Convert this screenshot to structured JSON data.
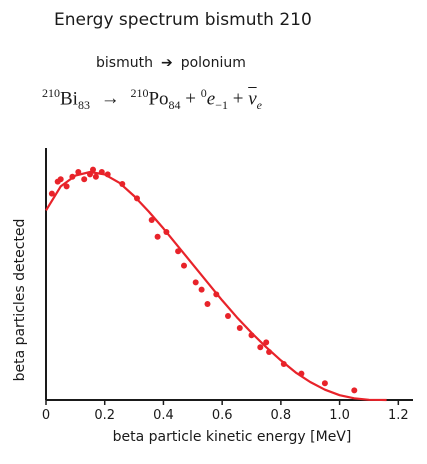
{
  "title": "Energy spectrum bismuth 210",
  "reaction": {
    "from": "bismuth",
    "to": "polonium"
  },
  "equation": {
    "bi_mass": "210",
    "bi_symbol": "Bi",
    "bi_atomic": "83",
    "po_mass": "210",
    "po_symbol": "Po",
    "po_atomic": "84",
    "plus1": "+",
    "e_mass": "0",
    "e_symbol": "e",
    "e_charge": "−1",
    "plus2": "+",
    "nu_symbol": "ν",
    "nu_sub": "e"
  },
  "chart_data": {
    "type": "scatter",
    "xlabel": "beta particle kinetic energy  [MeV]",
    "ylabel": "beta particles detected",
    "xlim": [
      0,
      1.25
    ],
    "ylim": [
      0,
      1.05
    ],
    "xticks": [
      "0",
      "0.2",
      "0.4",
      "0.6",
      "0.8",
      "1.0",
      "1.2"
    ],
    "xtick_values": [
      0,
      0.2,
      0.4,
      0.6,
      0.8,
      1.0,
      1.2
    ],
    "colors": {
      "data": "#e8232a",
      "axis": "#1a1a1a"
    },
    "series": [
      {
        "kind": "points",
        "x": [
          0.02,
          0.04,
          0.05,
          0.07,
          0.09,
          0.11,
          0.13,
          0.15,
          0.16,
          0.17,
          0.19,
          0.21,
          0.26,
          0.31,
          0.36,
          0.38,
          0.41,
          0.45,
          0.47,
          0.51,
          0.53,
          0.55,
          0.58,
          0.62,
          0.66,
          0.7,
          0.73,
          0.75,
          0.76,
          0.81,
          0.87,
          0.95,
          1.05
        ],
        "y": [
          0.86,
          0.91,
          0.92,
          0.89,
          0.93,
          0.95,
          0.92,
          0.94,
          0.96,
          0.93,
          0.95,
          0.94,
          0.9,
          0.84,
          0.75,
          0.68,
          0.7,
          0.62,
          0.56,
          0.49,
          0.46,
          0.4,
          0.44,
          0.35,
          0.3,
          0.27,
          0.22,
          0.24,
          0.2,
          0.15,
          0.11,
          0.07,
          0.04
        ]
      },
      {
        "kind": "curve",
        "x": [
          0,
          0.05,
          0.1,
          0.15,
          0.2,
          0.25,
          0.3,
          0.35,
          0.4,
          0.45,
          0.5,
          0.55,
          0.6,
          0.65,
          0.7,
          0.75,
          0.8,
          0.85,
          0.9,
          0.95,
          1.0,
          1.05,
          1.1,
          1.16
        ],
        "y": [
          0.79,
          0.89,
          0.935,
          0.95,
          0.94,
          0.905,
          0.85,
          0.785,
          0.715,
          0.64,
          0.565,
          0.49,
          0.415,
          0.345,
          0.28,
          0.22,
          0.165,
          0.115,
          0.075,
          0.043,
          0.02,
          0.007,
          0.001,
          0
        ]
      }
    ]
  }
}
